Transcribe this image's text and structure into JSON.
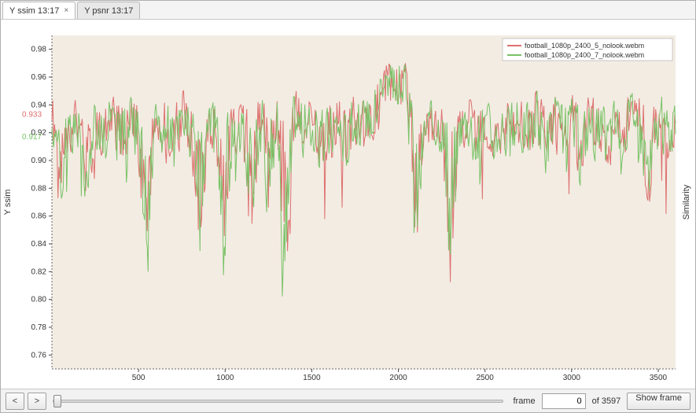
{
  "tabs": [
    {
      "label": "Y ssim 13:17",
      "active": true,
      "closeable": true
    },
    {
      "label": "Y psnr 13:17",
      "active": false,
      "closeable": false
    }
  ],
  "chart": {
    "type": "line",
    "title": "",
    "x_axis": {
      "label": "",
      "min": 0,
      "max": 3600,
      "ticks": [
        500,
        1000,
        1500,
        2000,
        2500,
        3000,
        3500
      ],
      "tick_labels": [
        "500",
        "1000",
        "1500",
        "2000",
        "2500",
        "3000",
        "3500"
      ],
      "label_fontsize": 10
    },
    "y_axis_left": {
      "label": "Y ssim",
      "min": 0.75,
      "max": 0.99,
      "ticks": [
        0.76,
        0.78,
        0.8,
        0.82,
        0.84,
        0.86,
        0.88,
        0.9,
        0.92,
        0.94,
        0.96,
        0.98
      ],
      "tick_labels": [
        "0.76",
        "0.78",
        "0.80",
        "0.82",
        "0.84",
        "0.86",
        "0.88",
        "0.90",
        "0.92",
        "0.94",
        "0.96",
        "0.98"
      ],
      "label_fontsize": 10,
      "markers": [
        {
          "value": 0.933,
          "label": "0.933",
          "color": "#dd706e"
        },
        {
          "value": 0.917,
          "label": "0.917",
          "color": "#79c267"
        }
      ]
    },
    "y_axis_right": {
      "label": "Similarity",
      "label_fontsize": 10
    },
    "legend": {
      "position": "top-right",
      "items": [
        {
          "label": "football_1080p_2400_5_nolook.webm",
          "color": "#dd706e"
        },
        {
          "label": "football_1080p_2400_7_nolook.webm",
          "color": "#79c267"
        }
      ]
    },
    "plot_bgcolor": "#f3ece3",
    "grid_color": "#d8d2c9",
    "series": [
      {
        "name": "football_1080p_2400_5_nolook.webm",
        "color": "#dd706e",
        "line_width": 1.0,
        "seed": 1
      },
      {
        "name": "football_1080p_2400_7_nolook.webm",
        "color": "#79c267",
        "line_width": 1.0,
        "seed": 2
      }
    ],
    "envelope": [
      [
        0,
        0.905,
        0.955
      ],
      [
        50,
        0.86,
        0.93
      ],
      [
        100,
        0.9,
        0.955
      ],
      [
        150,
        0.9,
        0.955
      ],
      [
        200,
        0.85,
        0.94
      ],
      [
        250,
        0.905,
        0.95
      ],
      [
        300,
        0.89,
        0.945
      ],
      [
        350,
        0.9,
        0.96
      ],
      [
        400,
        0.88,
        0.95
      ],
      [
        450,
        0.91,
        0.955
      ],
      [
        500,
        0.88,
        0.95
      ],
      [
        550,
        0.79,
        0.94
      ],
      [
        600,
        0.905,
        0.95
      ],
      [
        650,
        0.89,
        0.955
      ],
      [
        700,
        0.88,
        0.945
      ],
      [
        750,
        0.905,
        0.96
      ],
      [
        800,
        0.89,
        0.945
      ],
      [
        850,
        0.8,
        0.955
      ],
      [
        900,
        0.9,
        0.95
      ],
      [
        950,
        0.88,
        0.955
      ],
      [
        1000,
        0.81,
        0.955
      ],
      [
        1050,
        0.9,
        0.95
      ],
      [
        1100,
        0.89,
        0.945
      ],
      [
        1150,
        0.82,
        0.95
      ],
      [
        1200,
        0.9,
        0.955
      ],
      [
        1250,
        0.84,
        0.95
      ],
      [
        1300,
        0.9,
        0.955
      ],
      [
        1350,
        0.74,
        0.945
      ],
      [
        1400,
        0.905,
        0.96
      ],
      [
        1450,
        0.89,
        0.955
      ],
      [
        1500,
        0.9,
        0.95
      ],
      [
        1550,
        0.88,
        0.945
      ],
      [
        1600,
        0.89,
        0.95
      ],
      [
        1650,
        0.9,
        0.955
      ],
      [
        1700,
        0.88,
        0.945
      ],
      [
        1750,
        0.905,
        0.955
      ],
      [
        1800,
        0.89,
        0.95
      ],
      [
        1850,
        0.905,
        0.96
      ],
      [
        1900,
        0.93,
        0.98
      ],
      [
        1950,
        0.945,
        0.982
      ],
      [
        2000,
        0.945,
        0.98
      ],
      [
        2050,
        0.93,
        0.975
      ],
      [
        2100,
        0.78,
        0.95
      ],
      [
        2150,
        0.9,
        0.945
      ],
      [
        2200,
        0.905,
        0.95
      ],
      [
        2250,
        0.9,
        0.955
      ],
      [
        2300,
        0.76,
        0.95
      ],
      [
        2350,
        0.9,
        0.95
      ],
      [
        2400,
        0.905,
        0.955
      ],
      [
        2450,
        0.88,
        0.95
      ],
      [
        2500,
        0.9,
        0.955
      ],
      [
        2550,
        0.89,
        0.94
      ],
      [
        2600,
        0.9,
        0.955
      ],
      [
        2650,
        0.88,
        0.95
      ],
      [
        2700,
        0.9,
        0.955
      ],
      [
        2750,
        0.89,
        0.95
      ],
      [
        2800,
        0.9,
        0.96
      ],
      [
        2850,
        0.88,
        0.95
      ],
      [
        2900,
        0.9,
        0.955
      ],
      [
        2950,
        0.89,
        0.95
      ],
      [
        3000,
        0.9,
        0.955
      ],
      [
        3050,
        0.87,
        0.945
      ],
      [
        3100,
        0.9,
        0.955
      ],
      [
        3150,
        0.89,
        0.95
      ],
      [
        3200,
        0.88,
        0.945
      ],
      [
        3250,
        0.9,
        0.955
      ],
      [
        3300,
        0.89,
        0.95
      ],
      [
        3350,
        0.92,
        0.96
      ],
      [
        3400,
        0.89,
        0.955
      ],
      [
        3450,
        0.83,
        0.94
      ],
      [
        3500,
        0.905,
        0.955
      ],
      [
        3550,
        0.89,
        0.95
      ],
      [
        3597,
        0.9,
        0.945
      ]
    ]
  },
  "bottom_controls": {
    "prev_label": "<",
    "next_label": ">",
    "frame_label": "frame",
    "frame_value": "0",
    "total_label": "of 3597",
    "showframe_label": "Show frame"
  }
}
